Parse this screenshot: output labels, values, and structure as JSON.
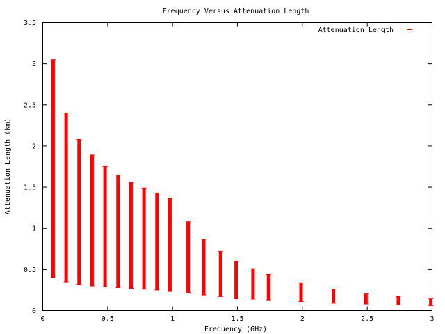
{
  "chart_data": {
    "type": "bar",
    "title": "Frequency Versus Attenuation Length",
    "xlabel": "Frequency (GHz)",
    "ylabel": "Attenuation Length (km)",
    "xlim": [
      0,
      3
    ],
    "ylim": [
      0,
      3.5
    ],
    "x_ticks": [
      "0",
      "0.5",
      "1",
      "1.5",
      "2",
      "2.5",
      "3"
    ],
    "y_ticks": [
      "0",
      "0.5",
      "1",
      "1.5",
      "2",
      "2.5",
      "3",
      "3.5"
    ],
    "grid": false,
    "legend_position": "top-right",
    "series": [
      {
        "name": "Attenuation Length",
        "color": "#ff0000",
        "marker": "+",
        "x": [
          0.08,
          0.18,
          0.28,
          0.38,
          0.48,
          0.58,
          0.68,
          0.78,
          0.88,
          0.98,
          1.12,
          1.24,
          1.37,
          1.49,
          1.62,
          1.74,
          1.99,
          2.24,
          2.49,
          2.74,
          2.99
        ],
        "low": [
          0.4,
          0.35,
          0.32,
          0.3,
          0.29,
          0.28,
          0.27,
          0.26,
          0.25,
          0.24,
          0.22,
          0.19,
          0.17,
          0.15,
          0.14,
          0.13,
          0.11,
          0.09,
          0.08,
          0.07,
          0.06
        ],
        "high": [
          3.05,
          2.4,
          2.08,
          1.89,
          1.75,
          1.65,
          1.56,
          1.49,
          1.43,
          1.37,
          1.08,
          0.87,
          0.72,
          0.6,
          0.51,
          0.44,
          0.34,
          0.26,
          0.21,
          0.17,
          0.15
        ]
      }
    ]
  }
}
